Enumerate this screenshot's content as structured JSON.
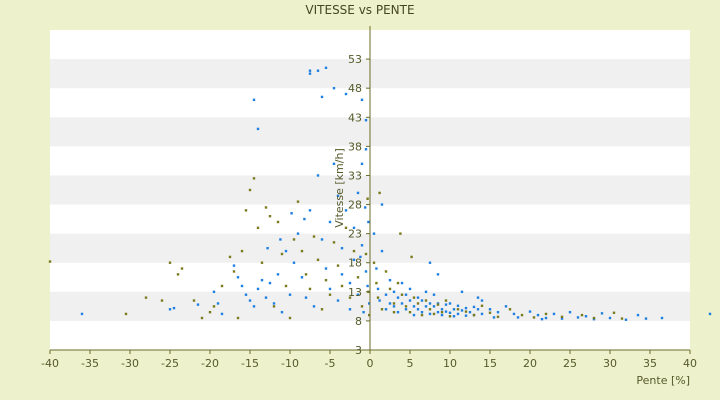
{
  "chart_data": {
    "type": "scatter",
    "title": "VITESSE vs PENTE",
    "xlabel": "Pente [%]",
    "ylabel": "Vitesse [km/h]",
    "xlim": [
      -40,
      40
    ],
    "ylim": [
      3,
      58
    ],
    "x_ticks": [
      "-40",
      "-35",
      "-30",
      "-25",
      "-20",
      "-15",
      "-10",
      "-5",
      "0",
      "5",
      "10",
      "15",
      "20",
      "25",
      "30",
      "35",
      "40"
    ],
    "y_ticks": [
      "3",
      "8",
      "13",
      "18",
      "23",
      "28",
      "33",
      "38",
      "43",
      "48",
      "53"
    ],
    "grid": "horizontal banded",
    "colors": {
      "background": "#eef2cc",
      "band_light": "#ffffff",
      "band_dark": "#f0f0f0",
      "axis": "#6b6b2a",
      "series_blue": "#1f7fe0",
      "series_olive": "#7a7a1e"
    },
    "series": [
      {
        "color": "#1f7fe0",
        "points": [
          [
            -36.0,
            9.2
          ],
          [
            -25.0,
            10.0
          ],
          [
            -24.5,
            10.2
          ],
          [
            -21.5,
            10.8
          ],
          [
            -19.5,
            13.0
          ],
          [
            -19.0,
            11.0
          ],
          [
            -18.5,
            9.2
          ],
          [
            -17.0,
            17.5
          ],
          [
            -16.5,
            15.5
          ],
          [
            -16.0,
            14.0
          ],
          [
            -15.5,
            12.5
          ],
          [
            -15.0,
            11.5
          ],
          [
            -14.5,
            10.5
          ],
          [
            -14.0,
            13.5
          ],
          [
            -14.5,
            46.0
          ],
          [
            -14.0,
            41.0
          ],
          [
            -13.5,
            15.0
          ],
          [
            -13.0,
            12.0
          ],
          [
            -12.5,
            14.5
          ],
          [
            -12.0,
            11.0
          ],
          [
            -11.5,
            16.0
          ],
          [
            -11.0,
            9.5
          ],
          [
            -10.5,
            20.0
          ],
          [
            -10.0,
            12.5
          ],
          [
            -9.5,
            18.0
          ],
          [
            -9.0,
            23.0
          ],
          [
            -8.5,
            15.5
          ],
          [
            -8.0,
            12.0
          ],
          [
            -7.5,
            27.0
          ],
          [
            -7.0,
            10.5
          ],
          [
            -7.5,
            51.0
          ],
          [
            -7.5,
            50.5
          ],
          [
            -6.5,
            51.0
          ],
          [
            -5.5,
            51.5
          ],
          [
            -6.0,
            46.5
          ],
          [
            -6.5,
            33.0
          ],
          [
            -6.0,
            22.0
          ],
          [
            -5.5,
            17.0
          ],
          [
            -5.0,
            13.5
          ],
          [
            -5.0,
            25.0
          ],
          [
            -4.5,
            48.0
          ],
          [
            -4.5,
            35.0
          ],
          [
            -4.0,
            29.5
          ],
          [
            -4.0,
            11.5
          ],
          [
            -3.5,
            20.5
          ],
          [
            -3.5,
            16.0
          ],
          [
            -3.0,
            47.0
          ],
          [
            -3.0,
            27.0
          ],
          [
            -2.5,
            14.5
          ],
          [
            -2.5,
            10.0
          ],
          [
            -2.0,
            24.0
          ],
          [
            -2.0,
            18.5
          ],
          [
            -1.5,
            12.5
          ],
          [
            -1.5,
            30.0
          ],
          [
            -1.0,
            46.0
          ],
          [
            -1.0,
            35.0
          ],
          [
            -1.0,
            21.0
          ],
          [
            -0.5,
            42.5
          ],
          [
            -0.5,
            37.5
          ],
          [
            -0.5,
            16.5
          ],
          [
            -0.3,
            14.0
          ],
          [
            -0.2,
            25.0
          ],
          [
            -0.1,
            11.0
          ],
          [
            -0.6,
            27.5
          ],
          [
            -1.2,
            19.0
          ],
          [
            -0.8,
            9.5
          ],
          [
            -12.8,
            20.5
          ],
          [
            -11.2,
            22.0
          ],
          [
            -9.8,
            26.5
          ],
          [
            -8.2,
            25.5
          ],
          [
            0.5,
            23.0
          ],
          [
            0.8,
            17.0
          ],
          [
            1.0,
            13.5
          ],
          [
            1.2,
            11.5
          ],
          [
            1.5,
            28.0
          ],
          [
            1.5,
            20.0
          ],
          [
            2.0,
            12.5
          ],
          [
            2.0,
            10.0
          ],
          [
            2.5,
            15.0
          ],
          [
            2.5,
            11.0
          ],
          [
            3.0,
            13.0
          ],
          [
            3.0,
            10.5
          ],
          [
            3.5,
            12.0
          ],
          [
            3.5,
            9.5
          ],
          [
            4.0,
            14.5
          ],
          [
            4.0,
            11.0
          ],
          [
            4.5,
            12.5
          ],
          [
            4.5,
            10.0
          ],
          [
            5.0,
            13.5
          ],
          [
            5.0,
            11.5
          ],
          [
            5.5,
            10.5
          ],
          [
            5.5,
            9.0
          ],
          [
            6.0,
            12.0
          ],
          [
            6.0,
            10.0
          ],
          [
            6.5,
            11.5
          ],
          [
            6.5,
            9.5
          ],
          [
            7.0,
            13.0
          ],
          [
            7.0,
            10.5
          ],
          [
            7.5,
            11.0
          ],
          [
            7.5,
            9.2
          ],
          [
            8.0,
            10.5
          ],
          [
            8.0,
            12.5
          ],
          [
            8.5,
            9.5
          ],
          [
            8.5,
            11.0
          ],
          [
            9.0,
            10.0
          ],
          [
            9.0,
            9.0
          ],
          [
            9.5,
            10.8
          ],
          [
            9.5,
            9.6
          ],
          [
            10.0,
            11.0
          ],
          [
            10.0,
            9.4
          ],
          [
            10.5,
            10.0
          ],
          [
            10.5,
            8.8
          ],
          [
            11.0,
            10.6
          ],
          [
            11.0,
            9.2
          ],
          [
            11.5,
            9.8
          ],
          [
            12.0,
            10.2
          ],
          [
            12.0,
            8.9
          ],
          [
            12.5,
            9.5
          ],
          [
            13.0,
            10.4
          ],
          [
            13.0,
            9.0
          ],
          [
            13.5,
            10.0
          ],
          [
            14.0,
            11.5
          ],
          [
            14.0,
            9.2
          ],
          [
            15.0,
            10.0
          ],
          [
            15.5,
            8.6
          ],
          [
            16.0,
            9.5
          ],
          [
            17.0,
            10.5
          ],
          [
            18.0,
            9.2
          ],
          [
            18.5,
            8.6
          ],
          [
            20.0,
            9.6
          ],
          [
            21.0,
            9.0
          ],
          [
            21.5,
            8.3
          ],
          [
            22.0,
            8.5
          ],
          [
            23.0,
            9.2
          ],
          [
            24.0,
            8.4
          ],
          [
            25.0,
            9.5
          ],
          [
            26.0,
            8.6
          ],
          [
            27.0,
            8.8
          ],
          [
            28.0,
            8.3
          ],
          [
            29.0,
            9.3
          ],
          [
            30.0,
            8.5
          ],
          [
            32.0,
            8.2
          ],
          [
            33.5,
            9.0
          ],
          [
            34.5,
            8.4
          ],
          [
            36.5,
            8.5
          ],
          [
            42.5,
            9.2
          ],
          [
            7.5,
            18.0
          ],
          [
            8.5,
            16.0
          ],
          [
            11.5,
            13.0
          ],
          [
            13.5,
            12.0
          ]
        ]
      },
      {
        "color": "#7a7a1e",
        "points": [
          [
            -40.0,
            18.2
          ],
          [
            -30.5,
            9.2
          ],
          [
            -28.0,
            12.0
          ],
          [
            -26.0,
            11.5
          ],
          [
            -25.0,
            18.0
          ],
          [
            -24.0,
            16.0
          ],
          [
            -23.5,
            17.0
          ],
          [
            -22.0,
            11.5
          ],
          [
            -21.0,
            8.5
          ],
          [
            -20.0,
            9.5
          ],
          [
            -19.5,
            10.5
          ],
          [
            -18.5,
            14.0
          ],
          [
            -17.5,
            19.0
          ],
          [
            -17.0,
            16.5
          ],
          [
            -16.5,
            8.5
          ],
          [
            -16.0,
            20.0
          ],
          [
            -15.5,
            27.0
          ],
          [
            -15.0,
            30.5
          ],
          [
            -14.5,
            32.5
          ],
          [
            -14.0,
            24.0
          ],
          [
            -13.5,
            18.0
          ],
          [
            -13.0,
            27.5
          ],
          [
            -12.5,
            26.0
          ],
          [
            -12.0,
            10.5
          ],
          [
            -11.5,
            25.0
          ],
          [
            -11.0,
            19.5
          ],
          [
            -10.5,
            14.0
          ],
          [
            -10.0,
            8.5
          ],
          [
            -9.5,
            22.0
          ],
          [
            -9.0,
            28.5
          ],
          [
            -8.5,
            20.0
          ],
          [
            -8.0,
            16.0
          ],
          [
            -7.5,
            13.5
          ],
          [
            -7.0,
            22.5
          ],
          [
            -6.5,
            18.5
          ],
          [
            -6.0,
            10.0
          ],
          [
            -5.5,
            15.0
          ],
          [
            -5.0,
            12.5
          ],
          [
            -4.5,
            21.5
          ],
          [
            -4.0,
            17.5
          ],
          [
            -3.5,
            14.0
          ],
          [
            -3.0,
            24.0
          ],
          [
            -2.5,
            12.0
          ],
          [
            -2.0,
            20.0
          ],
          [
            -1.5,
            15.5
          ],
          [
            -1.0,
            10.5
          ],
          [
            -0.5,
            19.5
          ],
          [
            -0.3,
            29.0
          ],
          [
            -0.2,
            13.0
          ],
          [
            -0.1,
            9.0
          ],
          [
            0.5,
            18.0
          ],
          [
            0.8,
            14.5
          ],
          [
            1.0,
            12.0
          ],
          [
            1.5,
            10.0
          ],
          [
            2.0,
            16.5
          ],
          [
            2.5,
            13.5
          ],
          [
            3.0,
            11.0
          ],
          [
            3.0,
            9.5
          ],
          [
            3.5,
            14.5
          ],
          [
            4.0,
            12.5
          ],
          [
            4.5,
            10.5
          ],
          [
            5.0,
            9.5
          ],
          [
            5.5,
            12.0
          ],
          [
            6.0,
            11.0
          ],
          [
            6.5,
            9.0
          ],
          [
            7.0,
            11.5
          ],
          [
            7.5,
            10.0
          ],
          [
            8.0,
            9.2
          ],
          [
            8.5,
            10.8
          ],
          [
            9.0,
            9.5
          ],
          [
            9.5,
            11.5
          ],
          [
            10.0,
            8.8
          ],
          [
            11.0,
            10.0
          ],
          [
            12.0,
            9.6
          ],
          [
            13.0,
            9.0
          ],
          [
            14.0,
            10.6
          ],
          [
            15.0,
            9.4
          ],
          [
            16.0,
            8.7
          ],
          [
            17.5,
            10.0
          ],
          [
            19.0,
            9.0
          ],
          [
            20.5,
            8.6
          ],
          [
            22.0,
            9.2
          ],
          [
            24.0,
            8.7
          ],
          [
            26.5,
            9.0
          ],
          [
            28.0,
            8.5
          ],
          [
            30.5,
            9.4
          ],
          [
            31.5,
            8.4
          ],
          [
            1.2,
            30.0
          ],
          [
            3.8,
            23.0
          ],
          [
            5.2,
            19.0
          ]
        ]
      }
    ]
  }
}
